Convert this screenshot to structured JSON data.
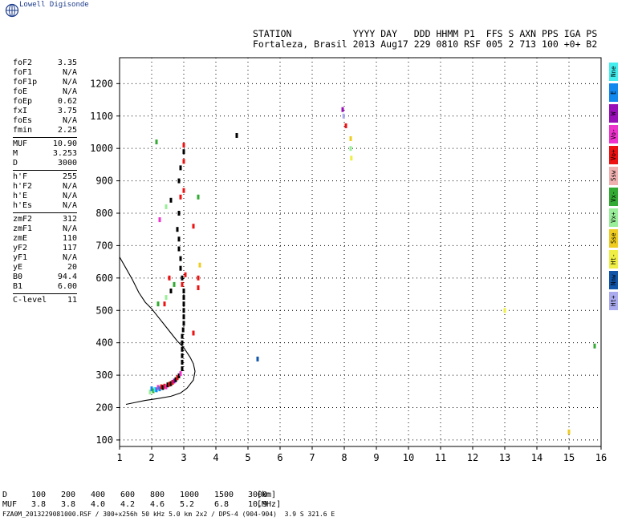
{
  "brand": {
    "logo_text": "Lowell Digisonde",
    "icon": "globe-logo-icon"
  },
  "header": {
    "line1": "STATION           YYYY DAY   DDD HHMM P1  FFS S AXN PPS IGA PS",
    "line2": "Fortaleza, Brasil 2013 Aug17 229 0810 RSF 005 2 713 100 +0+ B2"
  },
  "params": {
    "group1": [
      {
        "label": "foF2",
        "value": "3.35"
      },
      {
        "label": "foF1",
        "value": "N/A"
      },
      {
        "label": "foF1p",
        "value": "N/A"
      },
      {
        "label": "foE",
        "value": "N/A"
      },
      {
        "label": "foEp",
        "value": "0.62"
      },
      {
        "label": "fxI",
        "value": "3.75"
      },
      {
        "label": "foEs",
        "value": "N/A"
      },
      {
        "label": "fmin",
        "value": "2.25"
      }
    ],
    "group2": [
      {
        "label": "MUF",
        "value": "10.90"
      },
      {
        "label": "M",
        "value": "3.253"
      },
      {
        "label": "D",
        "value": "3000"
      }
    ],
    "group3": [
      {
        "label": "h'F",
        "value": "255"
      },
      {
        "label": "h'F2",
        "value": "N/A"
      },
      {
        "label": "h'E",
        "value": "N/A"
      },
      {
        "label": "h'Es",
        "value": "N/A"
      }
    ],
    "group4": [
      {
        "label": "zmF2",
        "value": "312"
      },
      {
        "label": "zmF1",
        "value": "N/A"
      },
      {
        "label": "zmE",
        "value": "110"
      },
      {
        "label": "yF2",
        "value": "117"
      },
      {
        "label": "yF1",
        "value": "N/A"
      },
      {
        "label": "yE",
        "value": "20"
      },
      {
        "label": "B0",
        "value": "94.4"
      },
      {
        "label": "B1",
        "value": "6.00"
      }
    ],
    "group5": [
      {
        "label": "C-level",
        "value": "11"
      }
    ]
  },
  "legend": [
    {
      "label": "Nne",
      "color": "#44eeee"
    },
    {
      "label": "E",
      "color": "#1188ee"
    },
    {
      "label": "W",
      "color": "#9a10b8"
    },
    {
      "label": "Vo-",
      "color": "#ee33cc"
    },
    {
      "label": "Vo+",
      "color": "#ee1111"
    },
    {
      "label": "Ssw",
      "color": "#f0b0b0"
    },
    {
      "label": "Vx-",
      "color": "#33aa33"
    },
    {
      "label": "Vx+",
      "color": "#99ee99"
    },
    {
      "label": "Sse",
      "color": "#eecc22"
    },
    {
      "label": "Ht-",
      "color": "#eeee44"
    },
    {
      "label": "Nnw",
      "color": "#1155aa"
    },
    {
      "label": "Ht+",
      "color": "#aaaaee"
    }
  ],
  "mufTable": {
    "row1": {
      "label": "D",
      "values": [
        "100",
        "200",
        "400",
        "600",
        "800",
        "1000",
        "1500",
        "3000"
      ],
      "unit": "[km]"
    },
    "row2": {
      "label": "MUF",
      "values": [
        "3.8",
        "3.8",
        "4.0",
        "4.2",
        "4.6",
        "5.2",
        "6.8",
        "10.9"
      ],
      "unit": "[MHz]"
    }
  },
  "footer": "FZA0M_2013229081000.RSF / 300+x256h 50 kHz 5.0 km 2x2 / DPS-4 (904-904)  3.9 S 321.6 E",
  "chart_data": {
    "type": "scatter",
    "xlim": [
      1,
      16
    ],
    "ylim": [
      80,
      1280
    ],
    "xticks": [
      1,
      2,
      3,
      4,
      5,
      6,
      7,
      8,
      9,
      10,
      11,
      12,
      13,
      14,
      15,
      16
    ],
    "yticks": [
      100,
      200,
      300,
      400,
      500,
      600,
      700,
      800,
      900,
      1000,
      1100,
      1200
    ],
    "grid": true,
    "profile_curve": [
      [
        1.0,
        665
      ],
      [
        1.2,
        630
      ],
      [
        1.4,
        595
      ],
      [
        1.6,
        555
      ],
      [
        1.8,
        525
      ],
      [
        2.0,
        505
      ],
      [
        2.2,
        480
      ],
      [
        2.4,
        455
      ],
      [
        2.6,
        430
      ],
      [
        2.8,
        405
      ],
      [
        3.0,
        385
      ],
      [
        3.1,
        370
      ],
      [
        3.2,
        355
      ],
      [
        3.3,
        335
      ],
      [
        3.35,
        312
      ],
      [
        3.3,
        285
      ],
      [
        3.1,
        260
      ],
      [
        2.9,
        245
      ],
      [
        2.6,
        235
      ],
      [
        2.2,
        228
      ],
      [
        1.8,
        222
      ],
      [
        1.5,
        216
      ],
      [
        1.2,
        210
      ]
    ],
    "echoes": [
      {
        "f": 1.95,
        "h": 248,
        "c": "#99ee99"
      },
      {
        "f": 2.0,
        "h": 258,
        "c": "#1188ee"
      },
      {
        "f": 2.05,
        "h": 252,
        "c": "#33aa33"
      },
      {
        "f": 2.1,
        "h": 256,
        "c": "#44eeee"
      },
      {
        "f": 2.15,
        "h": 255,
        "c": "#1188ee"
      },
      {
        "f": 2.2,
        "h": 262,
        "c": "#ee33cc"
      },
      {
        "f": 2.25,
        "h": 258,
        "c": "#1188ee"
      },
      {
        "f": 2.3,
        "h": 264,
        "c": "#ee1111"
      },
      {
        "f": 2.35,
        "h": 262,
        "c": "#000000"
      },
      {
        "f": 2.4,
        "h": 266,
        "c": "#ee1111"
      },
      {
        "f": 2.45,
        "h": 264,
        "c": "#ee33cc"
      },
      {
        "f": 2.5,
        "h": 270,
        "c": "#000000"
      },
      {
        "f": 2.55,
        "h": 272,
        "c": "#ee1111"
      },
      {
        "f": 2.6,
        "h": 274,
        "c": "#000000"
      },
      {
        "f": 2.65,
        "h": 278,
        "c": "#ee1111"
      },
      {
        "f": 2.7,
        "h": 282,
        "c": "#9a10b8"
      },
      {
        "f": 2.75,
        "h": 286,
        "c": "#000000"
      },
      {
        "f": 2.8,
        "h": 292,
        "c": "#ee1111"
      },
      {
        "f": 2.85,
        "h": 298,
        "c": "#000000"
      },
      {
        "f": 2.9,
        "h": 305,
        "c": "#ee33cc"
      },
      {
        "f": 2.95,
        "h": 320,
        "c": "#000000"
      },
      {
        "f": 2.95,
        "h": 340,
        "c": "#000000"
      },
      {
        "f": 2.95,
        "h": 360,
        "c": "#000000"
      },
      {
        "f": 2.95,
        "h": 380,
        "c": "#000000"
      },
      {
        "f": 2.95,
        "h": 400,
        "c": "#000000"
      },
      {
        "f": 2.95,
        "h": 420,
        "c": "#000000"
      },
      {
        "f": 2.98,
        "h": 440,
        "c": "#000000"
      },
      {
        "f": 3.0,
        "h": 460,
        "c": "#000000"
      },
      {
        "f": 3.0,
        "h": 480,
        "c": "#000000"
      },
      {
        "f": 3.0,
        "h": 500,
        "c": "#000000"
      },
      {
        "f": 3.0,
        "h": 520,
        "c": "#000000"
      },
      {
        "f": 3.0,
        "h": 540,
        "c": "#000000"
      },
      {
        "f": 3.0,
        "h": 560,
        "c": "#000000"
      },
      {
        "f": 2.95,
        "h": 580,
        "c": "#ee1111"
      },
      {
        "f": 2.95,
        "h": 600,
        "c": "#000000"
      },
      {
        "f": 3.05,
        "h": 610,
        "c": "#ee1111"
      },
      {
        "f": 2.9,
        "h": 630,
        "c": "#000000"
      },
      {
        "f": 2.9,
        "h": 660,
        "c": "#000000"
      },
      {
        "f": 2.85,
        "h": 690,
        "c": "#000000"
      },
      {
        "f": 2.85,
        "h": 720,
        "c": "#000000"
      },
      {
        "f": 2.8,
        "h": 750,
        "c": "#000000"
      },
      {
        "f": 2.85,
        "h": 800,
        "c": "#000000"
      },
      {
        "f": 2.9,
        "h": 850,
        "c": "#ee1111"
      },
      {
        "f": 3.0,
        "h": 870,
        "c": "#ee1111"
      },
      {
        "f": 2.85,
        "h": 900,
        "c": "#000000"
      },
      {
        "f": 2.9,
        "h": 940,
        "c": "#000000"
      },
      {
        "f": 3.0,
        "h": 960,
        "c": "#ee1111"
      },
      {
        "f": 3.0,
        "h": 990,
        "c": "#000000"
      },
      {
        "f": 3.0,
        "h": 1010,
        "c": "#ee1111"
      },
      {
        "f": 2.55,
        "h": 600,
        "c": "#ee1111"
      },
      {
        "f": 2.6,
        "h": 560,
        "c": "#000000"
      },
      {
        "f": 2.45,
        "h": 540,
        "c": "#99ee99"
      },
      {
        "f": 2.4,
        "h": 520,
        "c": "#ee1111"
      },
      {
        "f": 2.2,
        "h": 520,
        "c": "#33aa33"
      },
      {
        "f": 2.7,
        "h": 580,
        "c": "#33aa33"
      },
      {
        "f": 3.45,
        "h": 570,
        "c": "#ee1111"
      },
      {
        "f": 3.45,
        "h": 600,
        "c": "#ee1111"
      },
      {
        "f": 3.5,
        "h": 640,
        "c": "#eecc22"
      },
      {
        "f": 3.3,
        "h": 430,
        "c": "#ee1111"
      },
      {
        "f": 3.3,
        "h": 760,
        "c": "#ee1111"
      },
      {
        "f": 3.45,
        "h": 850,
        "c": "#33aa33"
      },
      {
        "f": 2.6,
        "h": 840,
        "c": "#000000"
      },
      {
        "f": 2.45,
        "h": 820,
        "c": "#99ee99"
      },
      {
        "f": 2.25,
        "h": 780,
        "c": "#ee33cc"
      },
      {
        "f": 2.15,
        "h": 1020,
        "c": "#33aa33"
      },
      {
        "f": 4.65,
        "h": 1040,
        "c": "#000000"
      },
      {
        "f": 5.3,
        "h": 350,
        "c": "#1155aa"
      },
      {
        "f": 7.95,
        "h": 1120,
        "c": "#9a10b8"
      },
      {
        "f": 7.98,
        "h": 1100,
        "c": "#aaaaee"
      },
      {
        "f": 8.05,
        "h": 1070,
        "c": "#ee1111"
      },
      {
        "f": 8.2,
        "h": 1030,
        "c": "#eecc22"
      },
      {
        "f": 8.2,
        "h": 1000,
        "c": "#99ee99"
      },
      {
        "f": 8.22,
        "h": 970,
        "c": "#eeee44"
      },
      {
        "f": 13.0,
        "h": 500,
        "c": "#eeee44"
      },
      {
        "f": 15.0,
        "h": 125,
        "c": "#eecc22"
      },
      {
        "f": 15.8,
        "h": 390,
        "c": "#33aa33"
      }
    ]
  }
}
